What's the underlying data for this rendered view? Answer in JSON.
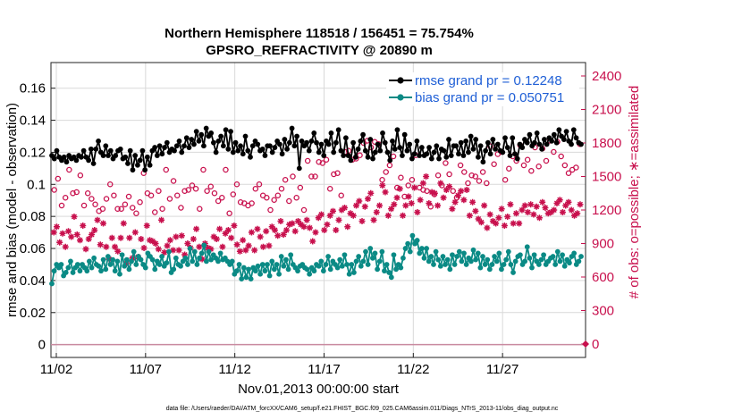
{
  "chart_data": {
    "type": "line",
    "title": "Northern Hemisphere 118518 / 156451 = 75.754%",
    "subtitle": "GPSRO_REFRACTIVITY @ 20890 m",
    "xlabel": "Nov.01,2013 00:00:00 start",
    "ylabel": "rmse and bias (model - observation)",
    "ylabel_right": "# of obs: o=possible; ∗=assimilated",
    "footnote": "data file: /Users/raeder/DAI/ATM_forcXX/CAM6_setup/f.e21.FHIST_BGC.f09_025.CAM6assim.011/Diags_NTrS_2013-11/obs_diag_output.nc",
    "x_tick_labels": [
      "11/02",
      "11/07",
      "11/12",
      "11/17",
      "11/22",
      "11/27"
    ],
    "x_tick_days": [
      1,
      6,
      11,
      16,
      21,
      26
    ],
    "xlim_days": [
      0.7,
      30.65
    ],
    "y_tick_labels": [
      "0",
      "0.02",
      "0.04",
      "0.06",
      "0.08",
      "0.1",
      "0.12",
      "0.14",
      "0.16"
    ],
    "ylim": [
      -0.008,
      0.176
    ],
    "y2_tick_labels": [
      "0",
      "300",
      "600",
      "900",
      "1200",
      "1500",
      "1800",
      "2100",
      "2400"
    ],
    "y2lim": [
      -120,
      2520
    ],
    "grid": true,
    "legend_position": "top-right",
    "series": [
      {
        "name": "rmse grand pr = 0.12248",
        "color": "#000000",
        "marker": "circle-filled",
        "axis": "left",
        "values": [
          0.118,
          0.116,
          0.121,
          0.117,
          0.115,
          0.117,
          0.114,
          0.118,
          0.116,
          0.117,
          0.115,
          0.118,
          0.117,
          0.121,
          0.117,
          0.115,
          0.122,
          0.113,
          0.122,
          0.127,
          0.12,
          0.118,
          0.124,
          0.118,
          0.121,
          0.116,
          0.118,
          0.121,
          0.122,
          0.116,
          0.117,
          0.113,
          0.121,
          0.109,
          0.118,
          0.112,
          0.115,
          0.121,
          0.109,
          0.117,
          0.112,
          0.121,
          0.123,
          0.118,
          0.124,
          0.119,
          0.123,
          0.126,
          0.12,
          0.122,
          0.121,
          0.124,
          0.127,
          0.12,
          0.124,
          0.129,
          0.123,
          0.128,
          0.125,
          0.133,
          0.127,
          0.131,
          0.124,
          0.135,
          0.13,
          0.132,
          0.126,
          0.12,
          0.127,
          0.13,
          0.124,
          0.134,
          0.122,
          0.133,
          0.12,
          0.126,
          0.121,
          0.124,
          0.119,
          0.13,
          0.121,
          0.117,
          0.124,
          0.127,
          0.125,
          0.121,
          0.122,
          0.118,
          0.124,
          0.124,
          0.12,
          0.123,
          0.127,
          0.125,
          0.119,
          0.128,
          0.122,
          0.126,
          0.135,
          0.124,
          0.13,
          0.11,
          0.127,
          0.124,
          0.126,
          0.121,
          0.127,
          0.132,
          0.126,
          0.12,
          0.125,
          0.118,
          0.127,
          0.125,
          0.132,
          0.12,
          0.126,
          0.134,
          0.121,
          0.118,
          0.129,
          0.118,
          0.115,
          0.126,
          0.117,
          0.122,
          0.127,
          0.131,
          0.121,
          0.117,
          0.128,
          0.116,
          0.12,
          0.125,
          0.121,
          0.132,
          0.126,
          0.12,
          0.115,
          0.127,
          0.122,
          0.134,
          0.123,
          0.118,
          0.131,
          0.121,
          0.125,
          0.116,
          0.119,
          0.127,
          0.118,
          0.123,
          0.118,
          0.119,
          0.123,
          0.116,
          0.12,
          0.124,
          0.116,
          0.122,
          0.121,
          0.117,
          0.128,
          0.118,
          0.124,
          0.124,
          0.119,
          0.126,
          0.118,
          0.127,
          0.12,
          0.13,
          0.122,
          0.128,
          0.117,
          0.124,
          0.114,
          0.121,
          0.126,
          0.119,
          0.128,
          0.122,
          0.125,
          0.121,
          0.12,
          0.129,
          0.123,
          0.118,
          0.129,
          0.119,
          0.116,
          0.125,
          0.123,
          0.128,
          0.126,
          0.131,
          0.124,
          0.126,
          0.132,
          0.125,
          0.122,
          0.128,
          0.125,
          0.129,
          0.127,
          0.131,
          0.126,
          0.134,
          0.13,
          0.128,
          0.133,
          0.127,
          0.125,
          0.134,
          0.129,
          0.126,
          0.125
        ]
      },
      {
        "name": "bias grand pr = 0.050751",
        "color": "#0a8a85",
        "marker": "circle-filled",
        "axis": "left",
        "values": [
          0.038,
          0.046,
          0.05,
          0.048,
          0.05,
          0.043,
          0.045,
          0.048,
          0.052,
          0.045,
          0.048,
          0.05,
          0.046,
          0.05,
          0.048,
          0.046,
          0.052,
          0.048,
          0.054,
          0.05,
          0.049,
          0.046,
          0.053,
          0.047,
          0.055,
          0.05,
          0.053,
          0.046,
          0.052,
          0.044,
          0.056,
          0.049,
          0.053,
          0.047,
          0.052,
          0.058,
          0.05,
          0.055,
          0.053,
          0.05,
          0.048,
          0.057,
          0.055,
          0.053,
          0.047,
          0.052,
          0.05,
          0.055,
          0.049,
          0.051,
          0.058,
          0.045,
          0.047,
          0.054,
          0.05,
          0.049,
          0.052,
          0.054,
          0.05,
          0.06,
          0.052,
          0.058,
          0.05,
          0.054,
          0.057,
          0.062,
          0.052,
          0.058,
          0.053,
          0.056,
          0.054,
          0.052,
          0.057,
          0.053,
          0.054,
          0.052,
          0.05,
          0.052,
          0.044,
          0.046,
          0.05,
          0.041,
          0.048,
          0.042,
          0.047,
          0.041,
          0.048,
          0.046,
          0.049,
          0.044,
          0.05,
          0.046,
          0.05,
          0.043,
          0.052,
          0.047,
          0.05,
          0.044,
          0.055,
          0.049,
          0.053,
          0.047,
          0.056,
          0.05,
          0.048,
          0.046,
          0.049,
          0.05,
          0.048,
          0.047,
          0.044,
          0.048,
          0.046,
          0.05,
          0.049,
          0.052,
          0.046,
          0.05,
          0.055,
          0.047,
          0.052,
          0.05,
          0.048,
          0.053,
          0.049,
          0.056,
          0.05,
          0.044,
          0.05,
          0.045,
          0.052,
          0.055,
          0.049,
          0.052,
          0.058,
          0.05,
          0.06,
          0.054,
          0.057,
          0.047,
          0.052,
          0.058,
          0.046,
          0.05,
          0.045,
          0.042,
          0.056,
          0.047,
          0.05,
          0.048,
          0.054,
          0.06,
          0.063,
          0.058,
          0.068,
          0.063,
          0.065,
          0.057,
          0.06,
          0.054,
          0.06,
          0.052,
          0.055,
          0.05,
          0.058,
          0.053,
          0.049,
          0.055,
          0.05,
          0.053,
          0.047,
          0.056,
          0.05,
          0.055,
          0.058,
          0.052,
          0.057,
          0.05,
          0.054,
          0.052,
          0.059,
          0.053,
          0.057,
          0.048,
          0.055,
          0.05,
          0.053,
          0.047,
          0.05,
          0.055,
          0.052,
          0.057,
          0.047,
          0.05,
          0.053,
          0.058,
          0.05,
          0.045,
          0.052,
          0.055,
          0.056,
          0.05,
          0.052,
          0.061,
          0.054,
          0.048,
          0.056,
          0.052,
          0.05,
          0.053,
          0.056,
          0.05,
          0.052,
          0.054,
          0.055,
          0.05,
          0.058,
          0.052,
          0.056,
          0.049,
          0.053,
          0.051,
          0.055,
          0.057,
          0.05,
          0.052,
          0.055
        ]
      },
      {
        "name": "possible",
        "color": "#c8104d",
        "marker": "circle-open",
        "axis": "right",
        "values": [
          1380,
          1480,
          1240,
          1310,
          1560,
          1350,
          1360,
          1510,
          1240,
          1350,
          1300,
          1250,
          1190,
          1210,
          1300,
          1430,
          1330,
          1210,
          1210,
          1250,
          1320,
          1220,
          1170,
          1270,
          1530,
          1350,
          1330,
          1180,
          1370,
          1210,
          1560,
          1300,
          1460,
          1330,
          1220,
          1370,
          1380,
          1420,
          1390,
          1210,
          1560,
          1370,
          1410,
          1350,
          1280,
          1310,
          1560,
          1170,
          1340,
          1430,
          1270,
          1260,
          1240,
          1260,
          1390,
          1430,
          1330,
          1310,
          1200,
          1290,
          1330,
          1390,
          1470,
          1280,
          1500,
          1310,
          1400,
          1200,
          1640,
          1500,
          1500,
          1630,
          1620,
          1650,
          1390,
          1520,
          1530,
          1330,
          1720,
          1730,
          1650,
          1660,
          1690,
          1800,
          1820,
          1760,
          1810,
          1790,
          1470,
          1540,
          1600,
          1680,
          1400,
          1490,
          1320,
          1420,
          1470,
          1690,
          1400,
          1380,
          1370,
          1230,
          1340,
          1510,
          1420,
          1620,
          1520,
          1370,
          1310,
          1600,
          1540,
          1440,
          1510,
          1500,
          1460,
          1540,
          1440,
          1770,
          1610,
          1700,
          1720,
          1470,
          1570,
          1680,
          1640,
          1780,
          1600,
          1650,
          1550,
          1760,
          1590,
          1750,
          1640,
          1820,
          1720,
          1810,
          1680,
          1600,
          1530,
          1560,
          1580,
          1790
        ]
      },
      {
        "name": "assimilated",
        "color": "#c8104d",
        "marker": "asterisk",
        "axis": "right",
        "values": [
          1000,
          1050,
          910,
          990,
          870,
          1010,
          960,
          1140,
          980,
          930,
          1060,
          850,
          940,
          980,
          1020,
          1110,
          890,
          1080,
          870,
          760,
          950,
          870,
          830,
          950,
          1080,
          720,
          950,
          770,
          1000,
          780,
          940,
          860,
          1060,
          930,
          920,
          900,
          850,
          1110,
          820,
          880,
          930,
          840,
          960,
          840,
          970,
          800,
          900,
          860,
          940,
          1030,
          870,
          760,
          900,
          860,
          850,
          960,
          940,
          1030,
          870,
          990,
          1020,
          950,
          1060,
          890,
          830,
          930,
          840,
          880,
          1000,
          840,
          1030,
          960,
          870,
          1010,
          880,
          1050,
          1020,
          970,
          1100,
          980,
          1020,
          1070,
          1080,
          1010,
          1100,
          1070,
          1050,
          1110,
          1040,
          920,
          1000,
          1130,
          1160,
          1020,
          1070,
          1150,
          1190,
          1020,
          1110,
          1200,
          1220,
          1050,
          1170,
          1150,
          1240,
          1280,
          1100,
          1230,
          1300,
          1350,
          1110,
          1180,
          1240,
          1420,
          1360,
          1150,
          1210,
          1250,
          1310,
          1390,
          1150,
          1240,
          1320,
          1260,
          1400,
          1180,
          1290,
          1440,
          1500,
          1260,
          1360,
          1350,
          1240,
          1440,
          1310,
          1380,
          1410,
          1210,
          1270,
          1330,
          1370,
          1290,
          1380,
          1150,
          1270,
          1190,
          1120,
          1090,
          1240,
          1040,
          1160,
          1100,
          1080,
          1130,
          1210,
          1060,
          1140,
          1250,
          1080,
          1170,
          1080,
          1200,
          1240,
          1180,
          1250,
          1160,
          1230,
          1130,
          1270,
          1220,
          1170,
          1180,
          1200,
          1260,
          1290,
          1180,
          1240,
          1270,
          1200,
          1150,
          1170,
          1250
        ]
      }
    ]
  }
}
